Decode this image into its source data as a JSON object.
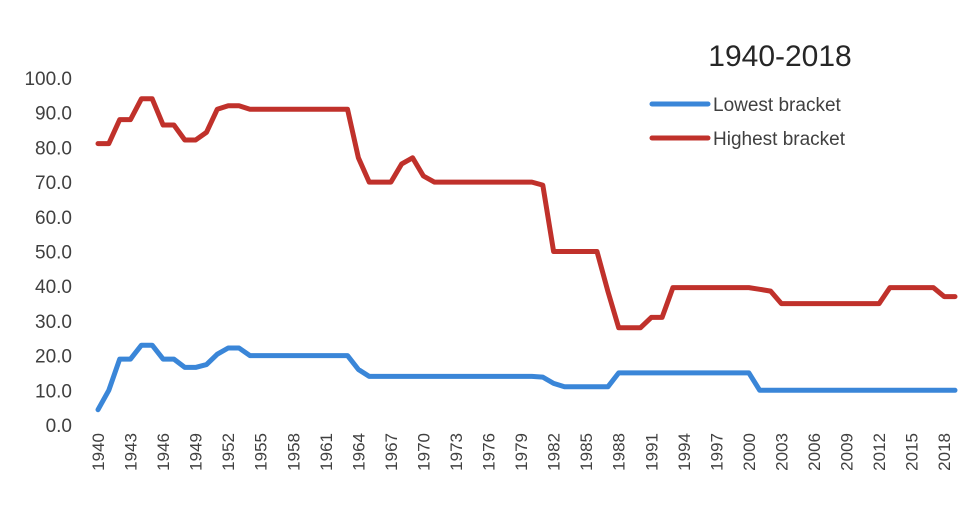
{
  "chart_data": {
    "type": "line",
    "title": "1940-2018",
    "xlabel": "",
    "ylabel": "",
    "ylim": [
      0,
      100
    ],
    "yticks": [
      "0.0",
      "10.0",
      "20.0",
      "30.0",
      "40.0",
      "50.0",
      "60.0",
      "70.0",
      "80.0",
      "90.0",
      "100.0"
    ],
    "xticks": [
      "1940",
      "1943",
      "1946",
      "1949",
      "1952",
      "1955",
      "1958",
      "1961",
      "1964",
      "1967",
      "1970",
      "1973",
      "1976",
      "1979",
      "1982",
      "1985",
      "1988",
      "1991",
      "1994",
      "1997",
      "2000",
      "2003",
      "2006",
      "2009",
      "2012",
      "2015",
      "2018"
    ],
    "x": [
      1940,
      1941,
      1942,
      1943,
      1944,
      1945,
      1946,
      1947,
      1948,
      1949,
      1950,
      1951,
      1952,
      1953,
      1954,
      1955,
      1956,
      1957,
      1958,
      1959,
      1960,
      1961,
      1962,
      1963,
      1964,
      1965,
      1966,
      1967,
      1968,
      1969,
      1970,
      1971,
      1972,
      1973,
      1974,
      1975,
      1976,
      1977,
      1978,
      1979,
      1980,
      1981,
      1982,
      1983,
      1984,
      1985,
      1986,
      1987,
      1988,
      1989,
      1990,
      1991,
      1992,
      1993,
      1994,
      1995,
      1996,
      1997,
      1998,
      1999,
      2000,
      2001,
      2002,
      2003,
      2004,
      2005,
      2006,
      2007,
      2008,
      2009,
      2010,
      2011,
      2012,
      2013,
      2014,
      2015,
      2016,
      2017,
      2018,
      2019
    ],
    "series": [
      {
        "name": "Lowest bracket",
        "color": "#3A86D8",
        "values": [
          4.4,
          10,
          19,
          19,
          23,
          23,
          19,
          19,
          16.6,
          16.6,
          17.4,
          20.4,
          22.2,
          22.2,
          20,
          20,
          20,
          20,
          20,
          20,
          20,
          20,
          20,
          20,
          16,
          14,
          14,
          14,
          14,
          14,
          14,
          14,
          14,
          14,
          14,
          14,
          14,
          14,
          14,
          14,
          14,
          13.8,
          12,
          11,
          11,
          11,
          11,
          11,
          15,
          15,
          15,
          15,
          15,
          15,
          15,
          15,
          15,
          15,
          15,
          15,
          15,
          10,
          10,
          10,
          10,
          10,
          10,
          10,
          10,
          10,
          10,
          10,
          10,
          10,
          10,
          10,
          10,
          10,
          10,
          10
        ]
      },
      {
        "name": "Highest bracket",
        "color": "#C0312B",
        "values": [
          81.1,
          81.1,
          88,
          88,
          94,
          94,
          86.45,
          86.45,
          82.13,
          82.13,
          84.36,
          91,
          92,
          92,
          91,
          91,
          91,
          91,
          91,
          91,
          91,
          91,
          91,
          91,
          77,
          70,
          70,
          70,
          75.25,
          77,
          71.75,
          70,
          70,
          70,
          70,
          70,
          70,
          70,
          70,
          70,
          70,
          69.13,
          50,
          50,
          50,
          50,
          50,
          38.5,
          28,
          28,
          28,
          31,
          31,
          39.6,
          39.6,
          39.6,
          39.6,
          39.6,
          39.6,
          39.6,
          39.6,
          39.1,
          38.6,
          35,
          35,
          35,
          35,
          35,
          35,
          35,
          35,
          35,
          35,
          39.6,
          39.6,
          39.6,
          39.6,
          39.6,
          37,
          37
        ]
      }
    ],
    "legend": "top-right",
    "grid": false
  }
}
